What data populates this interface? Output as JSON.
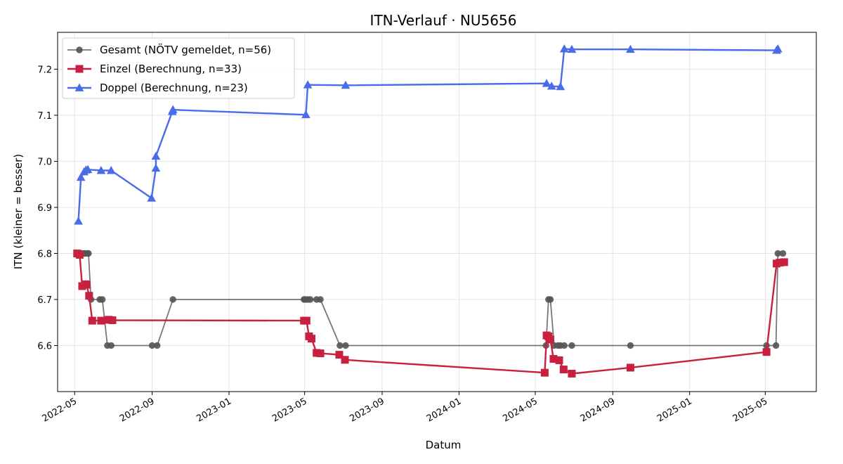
{
  "chart_data": {
    "type": "line",
    "title": "ITN-Verlauf · NU5656",
    "xlabel": "Datum",
    "ylabel": "ITN  (kleiner = besser)",
    "x_type": "date",
    "xlim": [
      "2022-04-04",
      "2025-07-21"
    ],
    "ylim": [
      6.5,
      7.28
    ],
    "x_ticks": [
      "2022-05-01",
      "2022-09-01",
      "2023-01-01",
      "2023-05-01",
      "2023-09-01",
      "2024-01-01",
      "2024-05-01",
      "2024-09-01",
      "2025-01-01",
      "2025-05-01"
    ],
    "x_tick_labels": [
      "2022-05",
      "2022-09",
      "2023-01",
      "2023-05",
      "2023-09",
      "2024-01",
      "2024-05",
      "2024-09",
      "2025-01",
      "2025-05"
    ],
    "y_ticks": [
      6.6,
      6.7,
      6.8,
      6.9,
      7.0,
      7.1,
      7.2
    ],
    "y_tick_labels": [
      "6.6",
      "6.7",
      "6.8",
      "6.9",
      "7.0",
      "7.1",
      "7.2"
    ],
    "grid": true,
    "legend_position": "top-left",
    "series": [
      {
        "name": "Gesamt (NÖTV gemeldet, n=56)",
        "color": "#555555",
        "marker": "circle",
        "points": [
          [
            "2022-05-05",
            6.8
          ],
          [
            "2022-05-07",
            6.8
          ],
          [
            "2022-05-10",
            6.8
          ],
          [
            "2022-05-13",
            6.8
          ],
          [
            "2022-05-16",
            6.8
          ],
          [
            "2022-05-18",
            6.8
          ],
          [
            "2022-05-21",
            6.8
          ],
          [
            "2022-05-23",
            6.8
          ],
          [
            "2022-05-27",
            6.7
          ],
          [
            "2022-06-10",
            6.7
          ],
          [
            "2022-06-14",
            6.7
          ],
          [
            "2022-06-22",
            6.6
          ],
          [
            "2022-06-28",
            6.6
          ],
          [
            "2022-09-01",
            6.6
          ],
          [
            "2022-09-09",
            6.6
          ],
          [
            "2022-10-04",
            6.7
          ],
          [
            "2023-04-30",
            6.7
          ],
          [
            "2023-05-02",
            6.7
          ],
          [
            "2023-05-06",
            6.7
          ],
          [
            "2023-05-10",
            6.7
          ],
          [
            "2023-05-20",
            6.7
          ],
          [
            "2023-05-26",
            6.7
          ],
          [
            "2023-06-26",
            6.6
          ],
          [
            "2023-07-05",
            6.6
          ],
          [
            "2024-05-18",
            6.6
          ],
          [
            "2024-05-22",
            6.7
          ],
          [
            "2024-05-25",
            6.7
          ],
          [
            "2024-05-31",
            6.6
          ],
          [
            "2024-06-06",
            6.6
          ],
          [
            "2024-06-10",
            6.6
          ],
          [
            "2024-06-16",
            6.6
          ],
          [
            "2024-06-28",
            6.6
          ],
          [
            "2024-09-29",
            6.6
          ],
          [
            "2025-05-03",
            6.6
          ],
          [
            "2025-05-18",
            6.6
          ],
          [
            "2025-05-21",
            6.8
          ],
          [
            "2025-05-29",
            6.8
          ]
        ]
      },
      {
        "name": "Einzel (Berechnung, n=33)",
        "color": "#C8203F",
        "marker": "square",
        "points": [
          [
            "2022-05-05",
            6.8
          ],
          [
            "2022-05-09",
            6.797
          ],
          [
            "2022-05-13",
            6.729
          ],
          [
            "2022-05-18",
            6.733
          ],
          [
            "2022-05-20",
            6.732
          ],
          [
            "2022-05-24",
            6.708
          ],
          [
            "2022-05-29",
            6.654
          ],
          [
            "2022-06-12",
            6.654
          ],
          [
            "2022-06-24",
            6.656
          ],
          [
            "2022-06-30",
            6.655
          ],
          [
            "2023-04-30",
            6.654
          ],
          [
            "2023-05-04",
            6.654
          ],
          [
            "2023-05-08",
            6.62
          ],
          [
            "2023-05-12",
            6.615
          ],
          [
            "2023-05-20",
            6.584
          ],
          [
            "2023-05-26",
            6.583
          ],
          [
            "2023-06-25",
            6.58
          ],
          [
            "2023-07-04",
            6.569
          ],
          [
            "2024-05-16",
            6.541
          ],
          [
            "2024-05-19",
            6.622
          ],
          [
            "2024-05-22",
            6.62
          ],
          [
            "2024-05-25",
            6.613
          ],
          [
            "2024-05-30",
            6.571
          ],
          [
            "2024-06-08",
            6.568
          ],
          [
            "2024-06-15",
            6.548
          ],
          [
            "2024-06-28",
            6.539
          ],
          [
            "2024-09-29",
            6.552
          ],
          [
            "2025-05-03",
            6.586
          ],
          [
            "2025-05-19",
            6.778
          ],
          [
            "2025-05-24",
            6.78
          ],
          [
            "2025-05-31",
            6.781
          ]
        ]
      },
      {
        "name": "Doppel (Berechnung, n=23)",
        "color": "#4A6CE8",
        "marker": "triangle",
        "points": [
          [
            "2022-05-07",
            6.87
          ],
          [
            "2022-05-11",
            6.965
          ],
          [
            "2022-05-16",
            6.977
          ],
          [
            "2022-05-19",
            6.981
          ],
          [
            "2022-05-22",
            6.982
          ],
          [
            "2022-06-12",
            6.98
          ],
          [
            "2022-06-28",
            6.98
          ],
          [
            "2022-08-31",
            6.92
          ],
          [
            "2022-09-07",
            6.985
          ],
          [
            "2022-09-07",
            7.011
          ],
          [
            "2022-10-03",
            7.108
          ],
          [
            "2022-10-04",
            7.112
          ],
          [
            "2023-05-03",
            7.101
          ],
          [
            "2023-05-06",
            7.166
          ],
          [
            "2023-07-05",
            7.165
          ],
          [
            "2024-05-19",
            7.169
          ],
          [
            "2024-05-27",
            7.163
          ],
          [
            "2024-06-10",
            7.162
          ],
          [
            "2024-06-16",
            7.244
          ],
          [
            "2024-06-28",
            7.243
          ],
          [
            "2024-09-29",
            7.243
          ],
          [
            "2025-05-19",
            7.241
          ],
          [
            "2025-05-21",
            7.244
          ]
        ]
      }
    ]
  }
}
